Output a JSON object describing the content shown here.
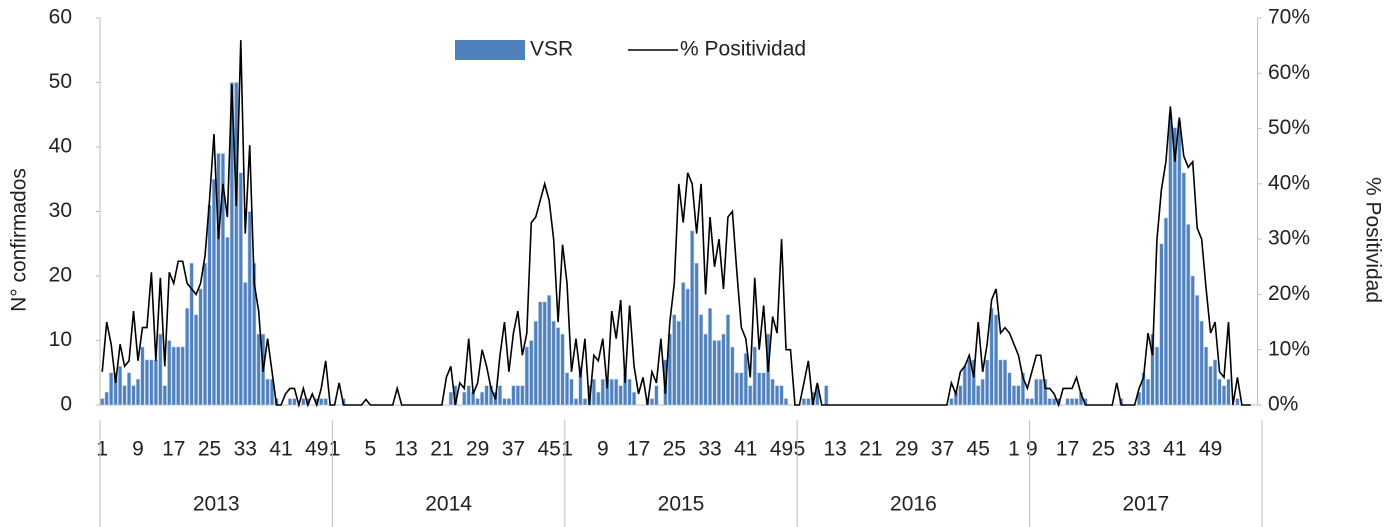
{
  "chart_data": {
    "type": "bar-line",
    "y_label": "N° confirmados",
    "y2_label": "% Positividad",
    "ylim": [
      0,
      60
    ],
    "yticks": [
      0,
      10,
      20,
      30,
      40,
      50,
      60
    ],
    "y2lim": [
      0,
      70
    ],
    "y2ticks": [
      {
        "value": 0,
        "label": "0%"
      },
      {
        "value": 10,
        "label": "10%"
      },
      {
        "value": 20,
        "label": "20%"
      },
      {
        "value": 30,
        "label": "30%"
      },
      {
        "value": 40,
        "label": "40%"
      },
      {
        "value": 50,
        "label": "50%"
      },
      {
        "value": 60,
        "label": "60%"
      },
      {
        "value": 70,
        "label": "70%"
      }
    ],
    "groups": [
      "2013",
      "2014",
      "2015",
      "2016",
      "2017"
    ],
    "categories": [
      "1",
      null,
      null,
      null,
      null,
      null,
      null,
      null,
      "9",
      null,
      null,
      null,
      null,
      null,
      null,
      null,
      "17",
      null,
      null,
      null,
      null,
      null,
      null,
      null,
      "25",
      null,
      null,
      null,
      null,
      null,
      null,
      null,
      "33",
      null,
      null,
      null,
      null,
      null,
      null,
      null,
      "41",
      null,
      null,
      null,
      null,
      null,
      null,
      null,
      "49",
      null,
      null,
      null,
      "1",
      null,
      null,
      null,
      null,
      null,
      null,
      null,
      "5",
      null,
      null,
      null,
      null,
      null,
      null,
      null,
      "13",
      null,
      null,
      null,
      null,
      null,
      null,
      null,
      "21",
      null,
      null,
      null,
      null,
      null,
      null,
      null,
      "29",
      null,
      null,
      null,
      null,
      null,
      null,
      null,
      "37",
      null,
      null,
      null,
      null,
      null,
      null,
      null,
      "45",
      null,
      null,
      null,
      "1",
      null,
      null,
      null,
      null,
      null,
      null,
      null,
      "9",
      null,
      null,
      null,
      null,
      null,
      null,
      null,
      "17",
      null,
      null,
      null,
      null,
      null,
      null,
      null,
      "25",
      null,
      null,
      null,
      null,
      null,
      null,
      null,
      "33",
      null,
      null,
      null,
      null,
      null,
      null,
      null,
      "41",
      null,
      null,
      null,
      null,
      null,
      null,
      null,
      "49",
      null,
      null,
      null,
      "5",
      null,
      null,
      null,
      null,
      null,
      null,
      null,
      "13",
      null,
      null,
      null,
      null,
      null,
      null,
      null,
      "21",
      null,
      null,
      null,
      null,
      null,
      null,
      null,
      "29",
      null,
      null,
      null,
      null,
      null,
      null,
      null,
      "37",
      null,
      null,
      null,
      null,
      null,
      null,
      null,
      "45",
      null,
      null,
      null,
      null,
      null,
      null,
      null,
      "1",
      null,
      null,
      null,
      "9",
      null,
      null,
      null,
      null,
      null,
      null,
      null,
      "17",
      null,
      null,
      null,
      null,
      null,
      null,
      null,
      "25",
      null,
      null,
      null,
      null,
      null,
      null,
      null,
      "33",
      null,
      null,
      null,
      null,
      null,
      null,
      null,
      "41",
      null,
      null,
      null,
      null,
      null,
      null,
      null,
      "49",
      null,
      null,
      null,
      null,
      null,
      null,
      null,
      null,
      null,
      null,
      null
    ],
    "series": [
      {
        "name": "VSR",
        "type": "bar",
        "color": "#4f81bd",
        "values": [
          1,
          2,
          5,
          5,
          6,
          3,
          5,
          3,
          4,
          9,
          7,
          7,
          7,
          11,
          3,
          10,
          9,
          9,
          9,
          15,
          22,
          14,
          18,
          22,
          31,
          35,
          39,
          39,
          26,
          50,
          50,
          36,
          19,
          30,
          22,
          11,
          11,
          4,
          4,
          1,
          0,
          0,
          1,
          1,
          0,
          1,
          1,
          0,
          1,
          1,
          1,
          0,
          0,
          0,
          1,
          0,
          0,
          0,
          0,
          0,
          0,
          0,
          0,
          0,
          0,
          0,
          0,
          0,
          0,
          0,
          0,
          0,
          0,
          0,
          0,
          0,
          0,
          0,
          2,
          3,
          0,
          2,
          3,
          2,
          1,
          2,
          3,
          3,
          2,
          3,
          1,
          1,
          3,
          3,
          3,
          9,
          10,
          13,
          16,
          16,
          17,
          13,
          12,
          11,
          5,
          4,
          1,
          6,
          1,
          3,
          4,
          2,
          4,
          4,
          4,
          4,
          3,
          5,
          4,
          2,
          0,
          0,
          1,
          1,
          3,
          0,
          7,
          11,
          14,
          13,
          19,
          18,
          27,
          22,
          14,
          11,
          15,
          10,
          10,
          11,
          14,
          9,
          5,
          5,
          8,
          3,
          9,
          5,
          5,
          11,
          4,
          3,
          3,
          1,
          0,
          0,
          0,
          1,
          1,
          2,
          3,
          0,
          3,
          0,
          0,
          0,
          0,
          0,
          0,
          0,
          0,
          0,
          0,
          0,
          0,
          0,
          0,
          0,
          0,
          0,
          0,
          0,
          0,
          0,
          0,
          0,
          0,
          0,
          0,
          0,
          1,
          2,
          3,
          6,
          7,
          7,
          3,
          4,
          7,
          15,
          14,
          7,
          7,
          5,
          3,
          3,
          5,
          1,
          1,
          4,
          4,
          4,
          1,
          1,
          1,
          0,
          1,
          1,
          1,
          2,
          1,
          0,
          0,
          0,
          0,
          0,
          0,
          0,
          1,
          0,
          0,
          0,
          2,
          5,
          4,
          11,
          9,
          25,
          29,
          45,
          43,
          44,
          36,
          28,
          20,
          17,
          13,
          9,
          6,
          7,
          4,
          3,
          4,
          0,
          1,
          0,
          0,
          0,
          null,
          null
        ]
      },
      {
        "name": "% Positividad",
        "type": "line",
        "axis": "y2",
        "color": "#000000",
        "values": [
          6,
          15,
          11,
          4,
          11,
          7,
          8,
          17,
          8,
          14,
          14,
          24,
          8,
          23,
          7,
          24,
          22,
          26,
          26,
          22,
          21,
          20,
          22,
          27,
          37,
          49,
          30,
          40,
          34,
          58,
          36,
          66,
          31,
          47,
          22,
          17,
          6,
          12,
          6,
          0,
          0,
          2,
          3,
          3,
          0,
          3,
          0,
          2,
          0,
          3,
          8,
          0,
          0,
          4,
          0,
          0,
          0,
          0,
          0,
          1,
          0,
          0,
          0,
          0,
          0,
          0,
          3,
          0,
          0,
          0,
          0,
          0,
          0,
          0,
          0,
          0,
          0,
          5,
          7,
          0,
          4,
          3,
          12,
          2,
          4,
          10,
          7,
          3,
          1,
          9,
          15,
          6,
          13,
          17,
          9,
          13,
          33,
          34,
          37,
          40,
          37,
          30,
          15,
          29,
          22,
          6,
          12,
          5,
          12,
          0,
          9,
          8,
          12,
          3,
          17,
          12,
          19,
          4,
          18,
          7,
          2,
          5,
          0,
          6,
          4,
          12,
          2,
          15,
          22,
          40,
          33,
          42,
          40,
          31,
          40,
          20,
          34,
          25,
          30,
          21,
          34,
          35,
          24,
          14,
          12,
          5,
          23,
          10,
          18,
          6,
          16,
          13,
          30,
          10,
          10,
          0,
          0,
          4,
          8,
          0,
          4,
          0,
          0,
          0,
          0,
          0,
          0,
          0,
          0,
          0,
          0,
          0,
          0,
          0,
          0,
          0,
          0,
          0,
          0,
          0,
          0,
          0,
          0,
          0,
          0,
          0,
          0,
          0,
          0,
          0,
          4,
          2,
          6,
          7,
          9,
          5,
          15,
          6,
          11,
          19,
          21,
          13,
          14,
          13,
          11,
          9,
          5,
          3,
          6,
          9,
          9,
          3,
          3,
          2,
          0,
          3,
          3,
          3,
          5,
          2,
          0,
          0,
          0,
          0,
          0,
          0,
          0,
          4,
          0,
          0,
          0,
          0,
          3,
          5,
          13,
          9,
          30,
          39,
          44,
          54,
          44,
          52,
          45,
          43,
          44,
          32,
          30,
          21,
          13,
          15,
          6,
          5,
          15,
          0,
          5,
          0,
          0,
          0,
          null,
          null
        ]
      }
    ]
  }
}
